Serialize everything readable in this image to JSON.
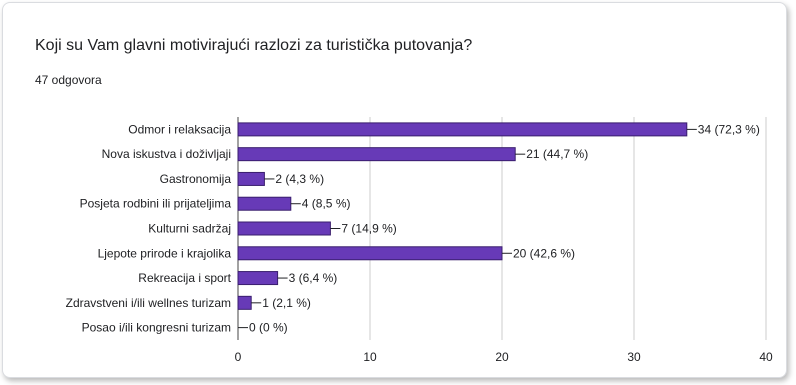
{
  "question": {
    "title": "Koji su Vam glavni motivirajući razlozi za turistička putovanja?",
    "response_count": "47 odgovora"
  },
  "chart_data": {
    "type": "bar",
    "orientation": "horizontal",
    "title": "Koji su Vam glavni motivirajući razlozi za turistička putovanja?",
    "categories": [
      "Odmor i relaksacija",
      "Nova iskustva i doživljaji",
      "Gastronomija",
      "Posjeta rodbini ili prijateljima",
      "Kulturni sadržaj",
      "Ljepote prirode i krajolika",
      "Rekreacija i sport",
      "Zdravstveni i/ili wellnes turizam",
      "Posao i/ili kongresni turizam"
    ],
    "values": [
      34,
      21,
      2,
      4,
      7,
      20,
      3,
      1,
      0
    ],
    "data_labels": [
      "34 (72,3 %)",
      "21 (44,7 %)",
      "2 (4,3 %)",
      "4 (8,5 %)",
      "7 (14,9 %)",
      "20 (42,6 %)",
      "3 (6,4 %)",
      "1 (2,1 %)",
      "0 (0 %)"
    ],
    "xlim": [
      0,
      40
    ],
    "xticks": [
      "0",
      "10",
      "20",
      "30",
      "40"
    ],
    "grid": true,
    "bar_color": "#673ab7",
    "bar_stroke": "#3a1e6e",
    "grid_color": "#cccccc"
  }
}
